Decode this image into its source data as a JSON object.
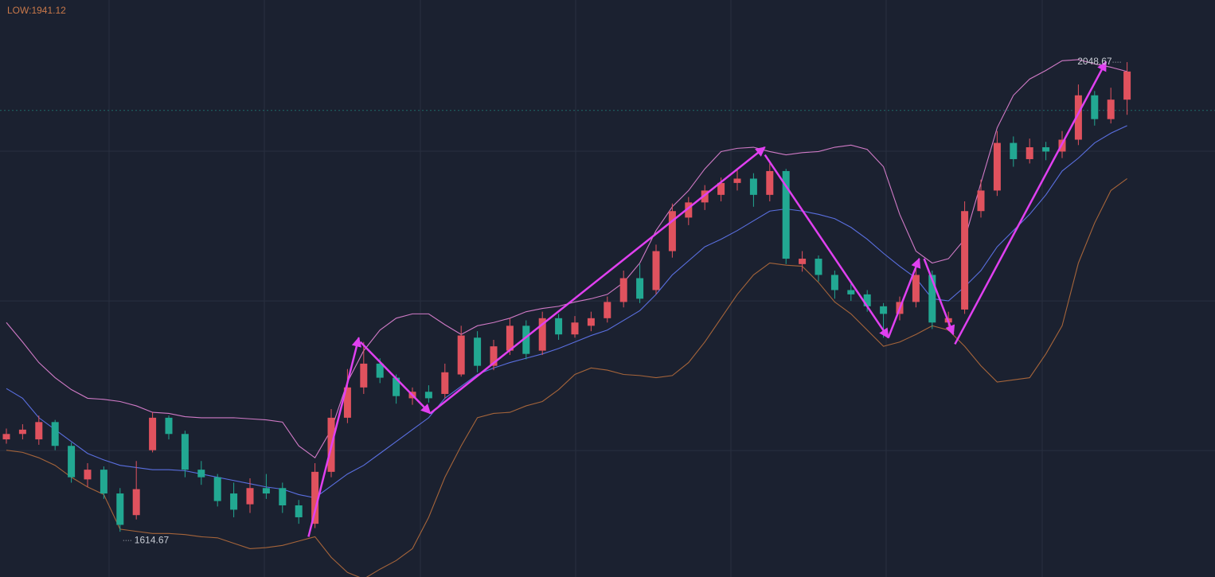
{
  "chart_data": {
    "type": "candlestick",
    "header": "LOW:1941.12",
    "ylim": [
      1572.8,
      2106.1
    ],
    "yticks": [
      1689.7,
      1828.0,
      1966.3
    ],
    "grid": true,
    "up_color": "#e0525e",
    "down_color": "#22a892",
    "ohlc": [
      [
        1700,
        1710,
        1696,
        1705
      ],
      [
        1705,
        1714,
        1700,
        1709
      ],
      [
        1700,
        1722,
        1695,
        1716
      ],
      [
        1716,
        1718,
        1690,
        1694
      ],
      [
        1694,
        1697,
        1660,
        1665
      ],
      [
        1663,
        1678,
        1656,
        1672
      ],
      [
        1672,
        1675,
        1645,
        1650
      ],
      [
        1650,
        1655,
        1614.67,
        1621
      ],
      [
        1630,
        1680,
        1626,
        1654
      ],
      [
        1690,
        1725,
        1688,
        1720
      ],
      [
        1720,
        1722,
        1700,
        1705
      ],
      [
        1705,
        1708,
        1665,
        1672
      ],
      [
        1672,
        1680,
        1658,
        1665
      ],
      [
        1665,
        1668,
        1638,
        1643
      ],
      [
        1650,
        1660,
        1628,
        1635
      ],
      [
        1640,
        1664,
        1632,
        1655
      ],
      [
        1655,
        1668,
        1645,
        1650
      ],
      [
        1655,
        1660,
        1632,
        1639
      ],
      [
        1639,
        1644,
        1622,
        1628
      ],
      [
        1622,
        1678,
        1618,
        1670
      ],
      [
        1670,
        1728,
        1665,
        1720
      ],
      [
        1720,
        1765,
        1715,
        1748
      ],
      [
        1748,
        1790,
        1742,
        1770
      ],
      [
        1770,
        1775,
        1752,
        1757
      ],
      [
        1757,
        1760,
        1733,
        1740
      ],
      [
        1738,
        1748,
        1732,
        1744
      ],
      [
        1744,
        1750,
        1734,
        1738
      ],
      [
        1742,
        1770,
        1738,
        1762
      ],
      [
        1760,
        1805,
        1758,
        1796
      ],
      [
        1794,
        1800,
        1762,
        1768
      ],
      [
        1768,
        1792,
        1764,
        1786
      ],
      [
        1782,
        1812,
        1778,
        1805
      ],
      [
        1805,
        1810,
        1774,
        1779
      ],
      [
        1782,
        1818,
        1778,
        1812
      ],
      [
        1812,
        1816,
        1792,
        1797
      ],
      [
        1797,
        1814,
        1794,
        1808
      ],
      [
        1805,
        1818,
        1800,
        1812
      ],
      [
        1812,
        1832,
        1808,
        1827
      ],
      [
        1827,
        1856,
        1822,
        1849
      ],
      [
        1849,
        1862,
        1826,
        1830
      ],
      [
        1838,
        1880,
        1834,
        1874
      ],
      [
        1874,
        1918,
        1868,
        1911
      ],
      [
        1905,
        1924,
        1898,
        1919
      ],
      [
        1919,
        1935,
        1912,
        1930
      ],
      [
        1926,
        1942,
        1920,
        1937
      ],
      [
        1937,
        1950,
        1930,
        1941
      ],
      [
        1941,
        1946,
        1915,
        1926
      ],
      [
        1926,
        1955,
        1920,
        1948
      ],
      [
        1948,
        1950,
        1862,
        1867
      ],
      [
        1862,
        1874,
        1855,
        1867
      ],
      [
        1867,
        1870,
        1846,
        1852
      ],
      [
        1852,
        1856,
        1830,
        1838
      ],
      [
        1838,
        1844,
        1828,
        1834
      ],
      [
        1834,
        1838,
        1818,
        1823
      ],
      [
        1823,
        1826,
        1794,
        1816
      ],
      [
        1816,
        1832,
        1810,
        1827
      ],
      [
        1827,
        1862,
        1822,
        1852
      ],
      [
        1852,
        1856,
        1802,
        1808
      ],
      [
        1808,
        1818,
        1800,
        1812
      ],
      [
        1820,
        1920,
        1816,
        1911
      ],
      [
        1911,
        1940,
        1905,
        1930
      ],
      [
        1930,
        1985,
        1925,
        1974
      ],
      [
        1974,
        1980,
        1952,
        1959
      ],
      [
        1959,
        1978,
        1955,
        1970
      ],
      [
        1970,
        1975,
        1958,
        1966
      ],
      [
        1966,
        1985,
        1960,
        1977
      ],
      [
        1977,
        2028,
        1972,
        2018
      ],
      [
        2018,
        2022,
        1990,
        1996
      ],
      [
        1996,
        2025,
        1992,
        2014
      ],
      [
        2014,
        2048.67,
        2000,
        2040
      ]
    ],
    "bands": [
      {
        "name": "upper",
        "color": "#d07ac6",
        "values": [
          1808,
          1790,
          1771,
          1757,
          1746,
          1738,
          1737,
          1735,
          1731,
          1725,
          1724,
          1721,
          1720,
          1720,
          1720,
          1719,
          1718,
          1716,
          1694,
          1683,
          1709,
          1753,
          1782,
          1801,
          1812,
          1816,
          1816,
          1806,
          1797,
          1805,
          1808,
          1812,
          1818,
          1821,
          1823,
          1827,
          1830,
          1834,
          1845,
          1863,
          1893,
          1915,
          1930,
          1950,
          1966,
          1969,
          1970,
          1966,
          1963,
          1965,
          1966,
          1970,
          1972,
          1968,
          1952,
          1908,
          1874,
          1863,
          1867,
          1885,
          1937,
          1988,
          2018,
          2033,
          2041,
          2050,
          2051,
          2047,
          2044,
          2040
        ]
      },
      {
        "name": "middle",
        "color": "#5a6fe0",
        "values": [
          1747,
          1738,
          1720,
          1709,
          1698,
          1687,
          1681,
          1676,
          1674,
          1672,
          1672,
          1671,
          1668,
          1665,
          1662,
          1659,
          1656,
          1654,
          1649,
          1646,
          1657,
          1668,
          1676,
          1687,
          1698,
          1709,
          1720,
          1738,
          1749,
          1760,
          1766,
          1771,
          1775,
          1779,
          1784,
          1790,
          1796,
          1801,
          1810,
          1819,
          1834,
          1852,
          1865,
          1878,
          1885,
          1893,
          1902,
          1911,
          1913,
          1911,
          1908,
          1904,
          1896,
          1885,
          1872,
          1860,
          1849,
          1830,
          1828,
          1841,
          1856,
          1878,
          1893,
          1908,
          1926,
          1948,
          1960,
          1974,
          1983,
          1990
        ]
      },
      {
        "name": "lower",
        "color": "#a5643a",
        "values": [
          1690,
          1688,
          1683,
          1676,
          1665,
          1656,
          1649,
          1617,
          1615,
          1613,
          1613,
          1612,
          1610,
          1609,
          1604,
          1599,
          1600,
          1602,
          1606,
          1610,
          1591,
          1577,
          1571,
          1580,
          1588,
          1599,
          1628,
          1665,
          1694,
          1720,
          1724,
          1725,
          1731,
          1735,
          1746,
          1760,
          1766,
          1764,
          1760,
          1759,
          1757,
          1759,
          1771,
          1790,
          1812,
          1834,
          1852,
          1863,
          1861,
          1860,
          1845,
          1827,
          1816,
          1801,
          1786,
          1790,
          1797,
          1805,
          1801,
          1786,
          1768,
          1753,
          1755,
          1757,
          1779,
          1805,
          1863,
          1900,
          1930,
          1941
        ]
      }
    ],
    "trend_lines": [
      {
        "from": [
          18.6,
          1610
        ],
        "to": [
          21.7,
          1794
        ]
      },
      {
        "from": [
          21.8,
          1790
        ],
        "to": [
          26.1,
          1724
        ]
      },
      {
        "from": [
          26.1,
          1724
        ],
        "to": [
          46.7,
          1970
        ]
      },
      {
        "from": [
          46.7,
          1963
        ],
        "to": [
          54.3,
          1794
        ]
      },
      {
        "from": [
          54.3,
          1794
        ],
        "to": [
          56.2,
          1867
        ]
      },
      {
        "from": [
          56.5,
          1867
        ],
        "to": [
          58.3,
          1797
        ]
      },
      {
        "from": [
          58.4,
          1788
        ],
        "to": [
          67.7,
          2049
        ]
      }
    ],
    "trend_color": "#e040f0",
    "price_line": 2004,
    "low_marker": {
      "index": 7,
      "value": 1614.67
    },
    "high_marker": {
      "index": 69,
      "value": 2048.67
    }
  }
}
